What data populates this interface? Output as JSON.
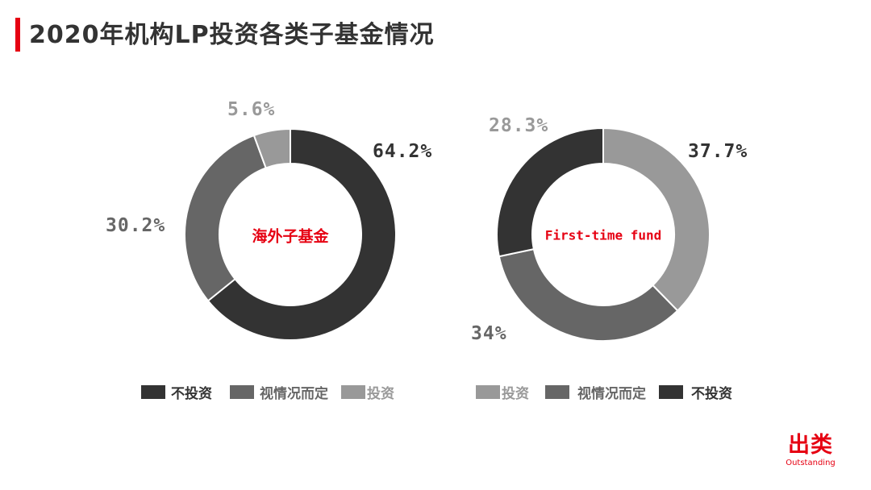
{
  "header": {
    "title": "2020年机构LP投资各类子基金情况",
    "accent_color": "#e60012"
  },
  "colors": {
    "no_invest": "#333333",
    "depends": "#666666",
    "invest": "#999999",
    "center_text": "#e60012"
  },
  "left_chart": {
    "center_label": "海外子基金",
    "labels": {
      "no_invest": "64.2%",
      "depends": "30.2%",
      "invest": "5.6%"
    },
    "legend": [
      {
        "label": "不投资",
        "color": "#333333"
      },
      {
        "label": "视情况而定",
        "color": "#666666"
      },
      {
        "label": "投资",
        "color": "#999999"
      }
    ]
  },
  "right_chart": {
    "center_label": "First-time fund",
    "labels": {
      "invest": "37.7%",
      "depends": "34%",
      "no_invest": "28.3%"
    },
    "legend": [
      {
        "label": "投资",
        "color": "#999999"
      },
      {
        "label": "视情况而定",
        "color": "#666666"
      },
      {
        "label": "不投资",
        "color": "#333333"
      }
    ]
  },
  "logo": {
    "cn": "出类",
    "en": "Outstanding"
  },
  "chart_data": [
    {
      "type": "pie",
      "title": "海外子基金",
      "subtitle": "2020年机构LP投资各类子基金情况",
      "categories": [
        "不投资",
        "视情况而定",
        "投资"
      ],
      "values": [
        64.2,
        30.2,
        5.6
      ],
      "colors": [
        "#333333",
        "#666666",
        "#999999"
      ],
      "donut": true,
      "legend_position": "bottom"
    },
    {
      "type": "pie",
      "title": "First-time fund",
      "subtitle": "2020年机构LP投资各类子基金情况",
      "categories": [
        "投资",
        "视情况而定",
        "不投资"
      ],
      "values": [
        37.7,
        34.0,
        28.3
      ],
      "colors": [
        "#999999",
        "#666666",
        "#333333"
      ],
      "donut": true,
      "legend_position": "bottom"
    }
  ]
}
